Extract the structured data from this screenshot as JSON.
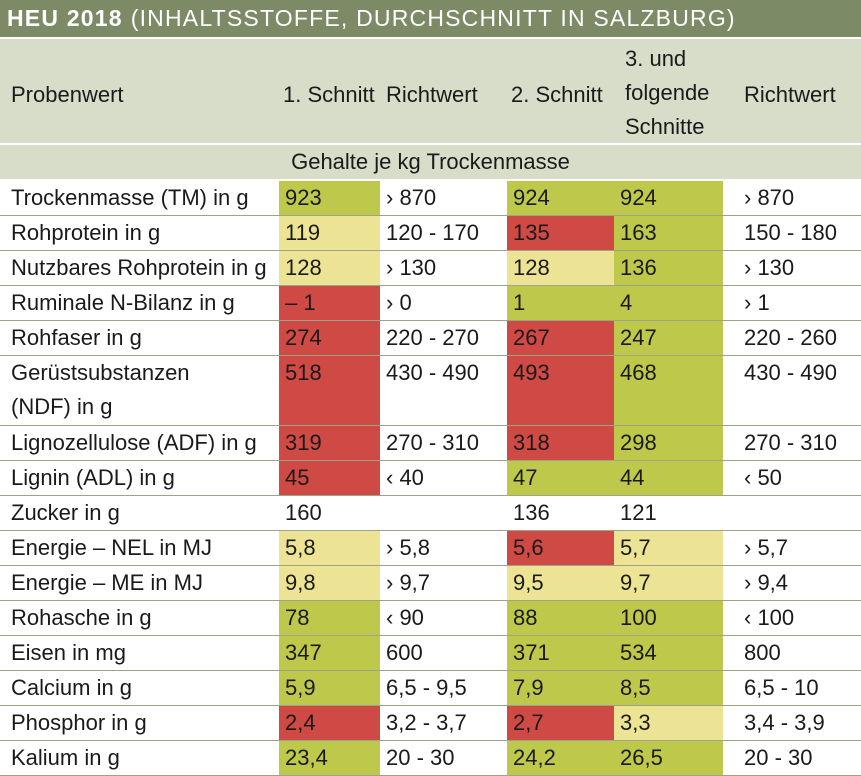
{
  "title": {
    "main": "HEU 2018",
    "sub": "(INHALTSSTOFFE, DURCHSCHNITT IN SALZBURG)"
  },
  "header": {
    "probenwert": "Probenwert",
    "schnitt1": "1. Schnitt",
    "richtwert1": "Richtwert",
    "schnitt2": "2. Schnitt",
    "schnitt3_l1": "3. und",
    "schnitt3_l2": "folgende",
    "schnitt3_l3": "Schnitte",
    "richtwert2": "Richtwert"
  },
  "subheader": "Gehalte je kg Trockenmasse",
  "colors": {
    "green": "#bec84b",
    "yellow": "#ece494",
    "red": "#cf4a45",
    "header": "#7d8a66",
    "band": "#d8ddca"
  },
  "rows": [
    {
      "label": "Trockenmasse (TM) in g",
      "s1": "923",
      "s1c": "g",
      "rw1": "› 870",
      "s2": "924",
      "s2c": "g",
      "s3": "924",
      "s3c": "g",
      "rw2": "› 870"
    },
    {
      "label": "Rohprotein in g",
      "s1": "119",
      "s1c": "y",
      "rw1": "120 - 170",
      "s2": "135",
      "s2c": "r",
      "s3": "163",
      "s3c": "g",
      "rw2": "150 - 180"
    },
    {
      "label": "Nutzbares Rohprotein in g",
      "s1": "128",
      "s1c": "y",
      "rw1": "› 130",
      "s2": "128",
      "s2c": "y",
      "s3": "136",
      "s3c": "g",
      "rw2": "› 130"
    },
    {
      "label": "Ruminale N-Bilanz in g",
      "s1": "– 1",
      "s1c": "r",
      "rw1": "› 0",
      "s2": "1",
      "s2c": "g",
      "s3": "4",
      "s3c": "g",
      "rw2": "› 1"
    },
    {
      "label": "Rohfaser in g",
      "s1": "274",
      "s1c": "r",
      "rw1": "220 - 270",
      "s2": "267",
      "s2c": "r",
      "s3": "247",
      "s3c": "g",
      "rw2": "220 - 260"
    },
    {
      "label": "Gerüstsubstanzen",
      "label2": "(NDF) in g",
      "s1": "518",
      "s1c": "r",
      "rw1": "430 - 490",
      "s2": "493",
      "s2c": "r",
      "s3": "468",
      "s3c": "g",
      "rw2": "430 - 490"
    },
    {
      "label": "Lignozellulose (ADF) in g",
      "s1": "319",
      "s1c": "r",
      "rw1": "270 - 310",
      "s2": "318",
      "s2c": "r",
      "s3": "298",
      "s3c": "g",
      "rw2": "270 - 310"
    },
    {
      "label": "Lignin (ADL) in g",
      "s1": "45",
      "s1c": "r",
      "rw1": "‹ 40",
      "s2": "47",
      "s2c": "g",
      "s3": "44",
      "s3c": "g",
      "rw2": "‹ 50"
    },
    {
      "label": "Zucker in g",
      "s1": "160",
      "s1c": "w",
      "rw1": "",
      "s2": "136",
      "s2c": "w",
      "s3": "121",
      "s3c": "w",
      "rw2": ""
    },
    {
      "label": "Energie – NEL in MJ",
      "s1": "5,8",
      "s1c": "y",
      "rw1": "› 5,8",
      "s2": "5,6",
      "s2c": "r",
      "s3": "5,7",
      "s3c": "y",
      "rw2": "› 5,7"
    },
    {
      "label": "Energie – ME in MJ",
      "s1": "9,8",
      "s1c": "y",
      "rw1": "› 9,7",
      "s2": "9,5",
      "s2c": "y",
      "s3": "9,7",
      "s3c": "y",
      "rw2": "› 9,4"
    },
    {
      "label": "Rohasche in g",
      "s1": "78",
      "s1c": "g",
      "rw1": "‹ 90",
      "s2": "88",
      "s2c": "g",
      "s3": "100",
      "s3c": "g",
      "rw2": "‹ 100"
    },
    {
      "label": "Eisen in mg",
      "s1": "347",
      "s1c": "g",
      "rw1": "600",
      "s2": "371",
      "s2c": "g",
      "s3": "534",
      "s3c": "g",
      "rw2": "800"
    },
    {
      "label": "Calcium in g",
      "s1": "5,9",
      "s1c": "g",
      "rw1": "6,5 - 9,5",
      "s2": "7,9",
      "s2c": "g",
      "s3": "8,5",
      "s3c": "g",
      "rw2": "6,5 - 10"
    },
    {
      "label": "Phosphor in g",
      "s1": "2,4",
      "s1c": "r",
      "rw1": "3,2 - 3,7",
      "s2": "2,7",
      "s2c": "r",
      "s3": "3,3",
      "s3c": "y",
      "rw2": "3,4 - 3,9"
    },
    {
      "label": "Kalium in g",
      "s1": "23,4",
      "s1c": "g",
      "rw1": "20 - 30",
      "s2": "24,2",
      "s2c": "g",
      "s3": "26,5",
      "s3c": "g",
      "rw2": "20 - 30"
    }
  ]
}
